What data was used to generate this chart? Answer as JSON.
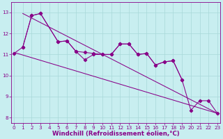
{
  "xlabel": "Windchill (Refroidissement éolien,°C)",
  "background_color": "#c8eef0",
  "grid_color": "#a8d8d8",
  "line_color": "#880088",
  "line1_x": [
    0,
    1,
    2,
    3,
    5,
    6,
    7,
    8,
    9,
    10,
    11,
    12,
    13,
    14,
    15,
    16,
    17,
    18,
    19
  ],
  "line1_y": [
    11.05,
    11.35,
    12.85,
    12.95,
    11.6,
    11.65,
    11.15,
    11.1,
    11.05,
    11.0,
    11.0,
    11.5,
    11.5,
    11.0,
    11.05,
    10.5,
    10.65,
    10.7,
    9.8
  ],
  "line2_x": [
    1,
    2,
    3,
    5,
    6,
    7,
    8,
    9,
    10,
    11,
    12,
    13,
    14,
    15,
    16,
    17,
    18,
    19,
    20,
    21,
    22,
    23
  ],
  "line2_y": [
    11.35,
    12.85,
    12.95,
    11.6,
    11.65,
    11.15,
    10.75,
    11.0,
    11.0,
    11.0,
    11.5,
    11.5,
    11.0,
    11.05,
    10.5,
    10.65,
    10.7,
    9.8,
    8.35,
    8.8,
    8.8,
    8.2
  ],
  "trend1_x": [
    0,
    23
  ],
  "trend1_y": [
    11.1,
    8.2
  ],
  "trend2_x": [
    1,
    23
  ],
  "trend2_y": [
    12.95,
    8.2
  ],
  "xlim": [
    -0.3,
    23.3
  ],
  "ylim": [
    7.75,
    13.5
  ],
  "yticks": [
    8,
    9,
    10,
    11,
    12,
    13
  ],
  "xticks": [
    0,
    1,
    2,
    3,
    4,
    5,
    6,
    7,
    8,
    9,
    10,
    11,
    12,
    13,
    14,
    15,
    16,
    17,
    18,
    19,
    20,
    21,
    22,
    23
  ],
  "tick_fontsize": 5.2,
  "xlabel_fontsize": 6.2
}
